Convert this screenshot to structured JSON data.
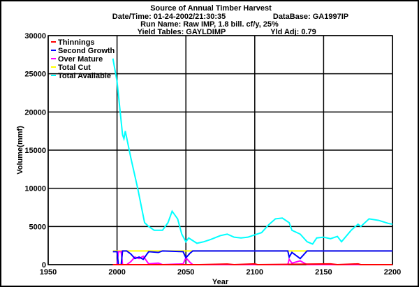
{
  "chart_data": {
    "type": "line",
    "title": "Source of Annual Timber Harvest",
    "subtitle_lines": {
      "datetime": "Date/Time: 01-24-2002/21:30:35",
      "database": "DataBase: GA1997IP",
      "run": "Run Name: Raw IMP, 1.8 bill. cf/y, 25%",
      "yield": "Yield Tables: GAYLDIMP",
      "yldadj": "Yld Adj: 0.79"
    },
    "xlabel": "Year",
    "ylabel": "Volume(mmf)",
    "xlim": [
      1950,
      2200
    ],
    "ylim": [
      0,
      30000
    ],
    "xticks": [
      1950,
      2000,
      2050,
      2100,
      2150,
      2200
    ],
    "yticks": [
      0,
      5000,
      10000,
      15000,
      20000,
      25000,
      30000
    ],
    "grid": true,
    "legend": "top-left",
    "series": [
      {
        "name": "Thinnings",
        "color": "#ff0000",
        "points": [
          [
            1997,
            0
          ],
          [
            2060,
            0
          ],
          [
            2080,
            80
          ],
          [
            2085,
            0
          ],
          [
            2100,
            100
          ],
          [
            2102,
            0
          ],
          [
            2155,
            100
          ],
          [
            2160,
            0
          ],
          [
            2175,
            100
          ],
          [
            2177,
            0
          ],
          [
            2200,
            0
          ]
        ]
      },
      {
        "name": "Second Growth",
        "color": "#0000ff",
        "points": [
          [
            1997,
            1700
          ],
          [
            2000,
            1700
          ],
          [
            2001,
            0
          ],
          [
            2003,
            0
          ],
          [
            2004,
            1800
          ],
          [
            2007,
            1800
          ],
          [
            2010,
            1400
          ],
          [
            2013,
            800
          ],
          [
            2016,
            1000
          ],
          [
            2019,
            700
          ],
          [
            2023,
            1700
          ],
          [
            2030,
            1600
          ],
          [
            2033,
            1800
          ],
          [
            2048,
            1700
          ],
          [
            2050,
            900
          ],
          [
            2053,
            1500
          ],
          [
            2055,
            1800
          ],
          [
            2124,
            1800
          ],
          [
            2125,
            1000
          ],
          [
            2127,
            1600
          ],
          [
            2133,
            800
          ],
          [
            2138,
            1800
          ],
          [
            2200,
            1800
          ]
        ]
      },
      {
        "name": "Over Mature",
        "color": "#ff00ff",
        "points": [
          [
            1997,
            0
          ],
          [
            2000,
            0
          ],
          [
            2001,
            1700
          ],
          [
            2003,
            1700
          ],
          [
            2004,
            0
          ],
          [
            2007,
            0
          ],
          [
            2010,
            400
          ],
          [
            2013,
            1000
          ],
          [
            2016,
            800
          ],
          [
            2019,
            1100
          ],
          [
            2023,
            100
          ],
          [
            2030,
            200
          ],
          [
            2033,
            0
          ],
          [
            2048,
            100
          ],
          [
            2050,
            900
          ],
          [
            2053,
            300
          ],
          [
            2055,
            0
          ],
          [
            2124,
            0
          ],
          [
            2125,
            700
          ],
          [
            2127,
            200
          ],
          [
            2133,
            500
          ],
          [
            2138,
            0
          ],
          [
            2200,
            0
          ]
        ]
      },
      {
        "name": "Total Cut",
        "color": "#ffff00",
        "points": [
          [
            1997,
            1800
          ],
          [
            2200,
            1800
          ]
        ]
      },
      {
        "name": "Total Available",
        "color": "#00ffff",
        "points": [
          [
            1997,
            27000
          ],
          [
            2000,
            24000
          ],
          [
            2004,
            17000
          ],
          [
            2005,
            16500
          ],
          [
            2006,
            17500
          ],
          [
            2010,
            14000
          ],
          [
            2015,
            10000
          ],
          [
            2020,
            5500
          ],
          [
            2023,
            5000
          ],
          [
            2027,
            4500
          ],
          [
            2033,
            4500
          ],
          [
            2037,
            5500
          ],
          [
            2040,
            7000
          ],
          [
            2044,
            6000
          ],
          [
            2047,
            4000
          ],
          [
            2050,
            3000
          ],
          [
            2052,
            3500
          ],
          [
            2058,
            2800
          ],
          [
            2063,
            3000
          ],
          [
            2068,
            3300
          ],
          [
            2075,
            3800
          ],
          [
            2080,
            4000
          ],
          [
            2085,
            3600
          ],
          [
            2090,
            3500
          ],
          [
            2095,
            3600
          ],
          [
            2100,
            3900
          ],
          [
            2105,
            4200
          ],
          [
            2110,
            5200
          ],
          [
            2115,
            6000
          ],
          [
            2120,
            6100
          ],
          [
            2125,
            5500
          ],
          [
            2127,
            4500
          ],
          [
            2133,
            4000
          ],
          [
            2138,
            3000
          ],
          [
            2142,
            2700
          ],
          [
            2145,
            3500
          ],
          [
            2150,
            3600
          ],
          [
            2155,
            3400
          ],
          [
            2160,
            3700
          ],
          [
            2163,
            3000
          ],
          [
            2170,
            4500
          ],
          [
            2175,
            5300
          ],
          [
            2177,
            5000
          ],
          [
            2183,
            6000
          ],
          [
            2190,
            5800
          ],
          [
            2197,
            5400
          ],
          [
            2200,
            5300
          ]
        ]
      }
    ]
  }
}
